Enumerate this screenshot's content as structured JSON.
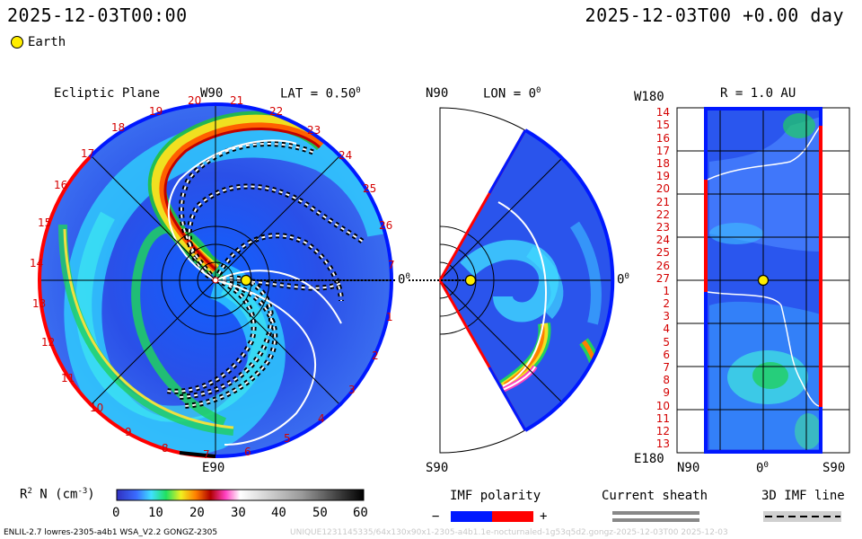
{
  "header": {
    "left_time": "2025-12-03T00:00",
    "right_time": "2025-12-03T00 +0.00 day",
    "legend_label": "Earth"
  },
  "panels": {
    "ecliptic": {
      "title": "Ecliptic Plane",
      "top_label": "W90",
      "lat_label": "LAT = 0.50",
      "lat_sup": "0",
      "bottom_label": "E90",
      "left_label": "14",
      "sector_numbers": [
        "17",
        "18",
        "19",
        "20",
        "21",
        "22",
        "23",
        "24",
        "25",
        "26",
        "7",
        "1",
        "2",
        "3",
        "4",
        "5",
        "6",
        "7",
        "8",
        "9",
        "10",
        "11",
        "12",
        "13",
        "14",
        "15",
        "16"
      ]
    },
    "meridional": {
      "top_label": "N90",
      "lon_label": "LON = 0",
      "lon_sup": "0",
      "right_label": "0",
      "right_sup": "0",
      "left_label": "0",
      "left_sup": "0",
      "bottom_label": "S90"
    },
    "radial": {
      "top_left_label": "W180",
      "r_label": "R = 1.0 AU",
      "bottom_left_label": "E180",
      "bottom_labels": [
        "N90",
        "0",
        "S90"
      ],
      "bottom_sup": "0",
      "y_ticks": [
        "14",
        "15",
        "16",
        "17",
        "18",
        "19",
        "20",
        "21",
        "22",
        "23",
        "24",
        "25",
        "26",
        "27",
        "1",
        "2",
        "3",
        "4",
        "5",
        "6",
        "7",
        "8",
        "9",
        "10",
        "11",
        "12",
        "13"
      ]
    }
  },
  "colorbar": {
    "label": "R",
    "label_sup": "2",
    "label_rest": " N (cm",
    "label_exp": "-3",
    "label_end": ")",
    "ticks": [
      "0",
      "10",
      "20",
      "30",
      "40",
      "50",
      "60"
    ]
  },
  "legend": {
    "imf_title": "IMF polarity",
    "imf_minus": "−",
    "imf_plus": "+",
    "sheath_title": "Current sheath",
    "imf3d_title": "3D IMF line"
  },
  "footer": {
    "model": "ENLIL-2.7 lowres-2305-a4b1 WSA_V2.2 GONGZ-2305",
    "run_id": "UNIQUE1231145335/64x130x90x1-2305-a4b1.1e-nocturnaled-1g53q5d2.gongz-2025-12-03T00  2025-12-03"
  },
  "colors": {
    "polarity_negative": "#0018ff",
    "polarity_positive": "#ff0000",
    "earth": "#ffee00",
    "sector_numbers": "#d40000"
  }
}
